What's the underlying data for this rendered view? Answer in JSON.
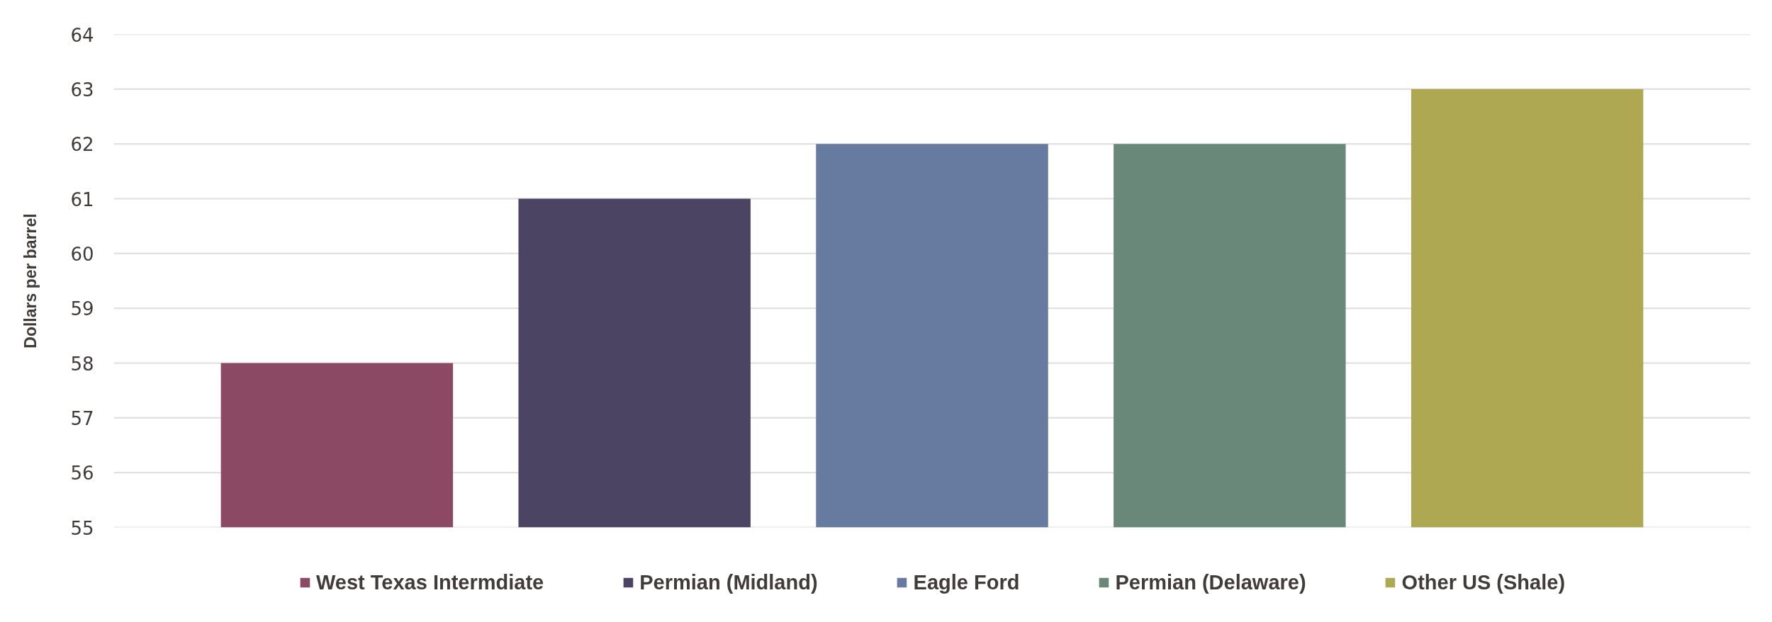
{
  "chart_data": {
    "type": "bar",
    "ylabel": "Dollars per barrel",
    "categories": [
      null,
      null,
      null,
      null,
      null
    ],
    "series": [
      {
        "name": "West Texas Intermdiate",
        "color": "#8b4963",
        "values": [
          58,
          null,
          null,
          null,
          null
        ]
      },
      {
        "name": "Permian (Midland)",
        "color": "#4b4463",
        "values": [
          null,
          61,
          null,
          null,
          null
        ]
      },
      {
        "name": "Eagle Ford",
        "color": "#677aa0",
        "values": [
          null,
          null,
          62,
          null,
          null
        ]
      },
      {
        "name": "Permian (Delaware)",
        "color": "#6a887a",
        "values": [
          null,
          null,
          null,
          62,
          null
        ]
      },
      {
        "name": "Other US (Shale)",
        "color": "#afa852",
        "values": [
          null,
          null,
          null,
          null,
          63
        ]
      }
    ],
    "ylim": [
      55,
      64
    ],
    "yticks": [
      55,
      56,
      57,
      58,
      59,
      60,
      61,
      62,
      63,
      64
    ],
    "grid": "y",
    "legend": "bottom"
  }
}
